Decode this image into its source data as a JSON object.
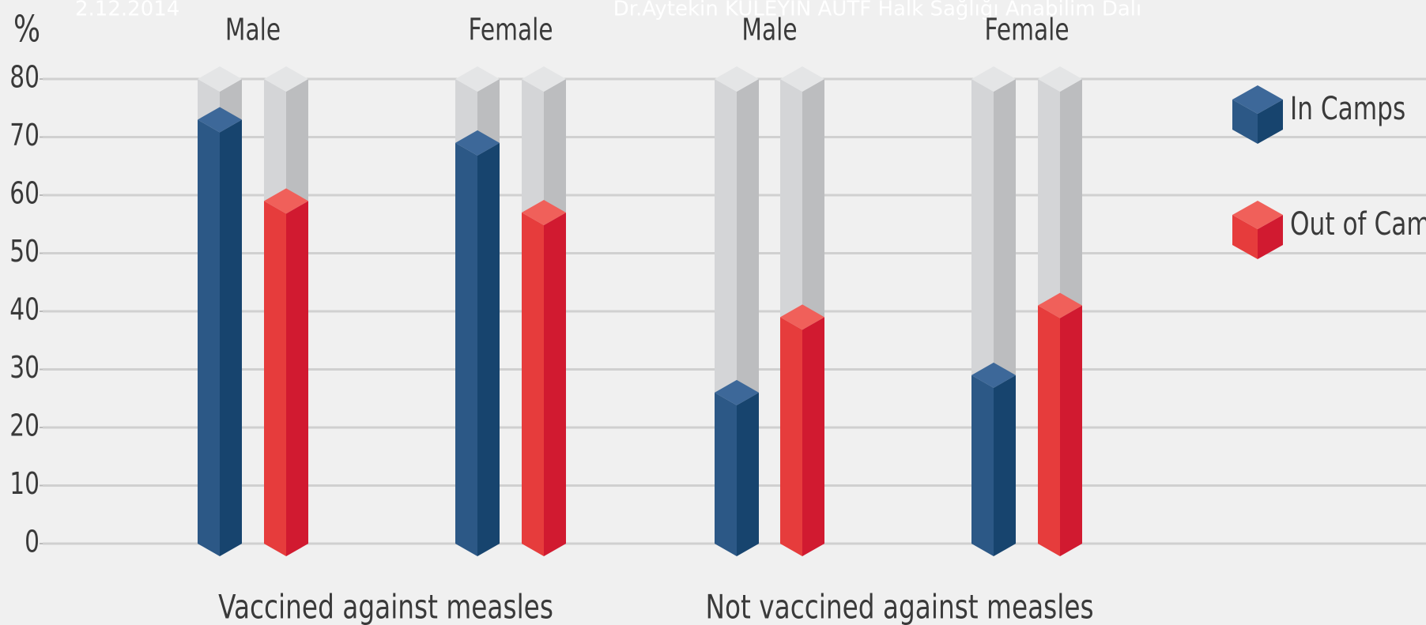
{
  "chart_data": {
    "type": "bar",
    "header_date": "2.12.2014",
    "header_author": "Dr.Aytekin KÜLEYİN AÜTF Halk Sağlığı Anabilim Dalı",
    "y_label": "%",
    "groups": [
      "Vaccined against measles",
      "Not vaccined against measles"
    ],
    "categories": [
      "Male",
      "Female",
      "Male",
      "Female"
    ],
    "series": [
      {
        "name": "In Camps",
        "color": "#2c5886",
        "values": [
          73,
          69,
          26,
          29
        ]
      },
      {
        "name": "Out of Camps",
        "color": "#e63c3c",
        "values": [
          59,
          57,
          39,
          41
        ]
      }
    ],
    "ylim": [
      0,
      80
    ],
    "yticks": [
      0,
      10,
      20,
      30,
      40,
      50,
      60,
      70,
      80
    ],
    "grid": true,
    "legend": "right"
  }
}
